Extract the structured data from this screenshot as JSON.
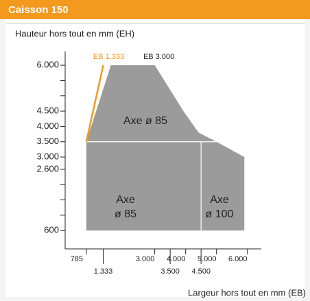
{
  "chart_data": {
    "type": "area",
    "title": "Caisson 150",
    "y_label": "Hauteur hors tout en mm (EH)",
    "x_label": "Largeur hors tout en mm (EB)",
    "xlim": [
      100,
      6450
    ],
    "ylim": [
      0,
      6450
    ],
    "xticks": [
      785,
      {
        "value": 1333,
        "label": "1.333"
      },
      {
        "value": 3000,
        "label": "3.000"
      },
      {
        "value": 3500,
        "label": "3.500"
      },
      {
        "value": 4000,
        "label": "4.000"
      },
      {
        "value": 4500,
        "label": "4.500"
      },
      {
        "value": 5000,
        "label": "5.000"
      },
      {
        "value": 6000,
        "label": "6.000"
      }
    ],
    "yticks": [
      {
        "value": 6000,
        "label": "6.000"
      },
      {
        "value": 4500,
        "label": "4.500"
      },
      {
        "value": 4000,
        "label": "4.000"
      },
      {
        "value": 3500,
        "label": "3.500"
      },
      {
        "value": 3000,
        "label": "3.000"
      },
      {
        "value": 2600,
        "label": "2.600"
      },
      600
    ],
    "minor_yticks": [
      5500,
      5000,
      2100,
      1600,
      1100
    ],
    "color": "#9b9b9b",
    "series": [
      {
        "name": "Axe ø 85",
        "x": [
          785,
          1580,
          3000,
          3930,
          4420,
          5000
        ],
        "values": [
          3500,
          6000,
          6000,
          4500,
          3800,
          3500
        ]
      },
      {
        "x": [
          785,
          785,
          5000,
          5900,
          5900
        ],
        "values": [
          600,
          3500,
          3500,
          3000,
          600
        ]
      }
    ],
    "region_labels": [
      [
        "Axe",
        "ø 85"
      ],
      [
        "Axe",
        "ø 100"
      ]
    ],
    "edge_line": {
      "name": "EB 1.333",
      "color": "#f39a1e",
      "x": [
        785,
        1333
      ],
      "values": [
        3500,
        6000
      ]
    },
    "edge_label_2": "EB 3.000",
    "divider_x": 4500,
    "divider_y": 3500
  }
}
